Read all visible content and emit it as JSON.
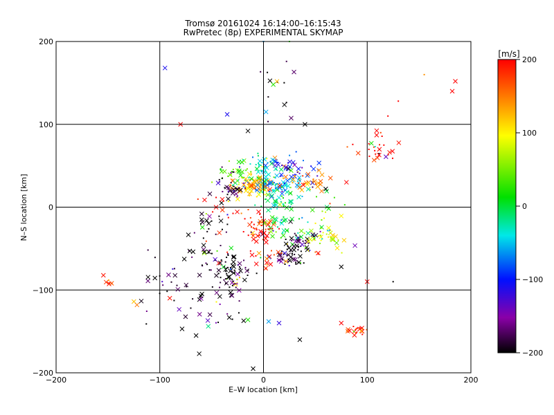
{
  "chart_data": {
    "type": "scatter",
    "title": "Tromsø 20161024 16:14:00–16:15:43",
    "subtitle": "RwPretec (8p) EXPERIMENTAL SKYMAP",
    "xlabel": "E–W location [km]",
    "ylabel": "N–S location [km]",
    "xlim": [
      -200,
      200
    ],
    "ylim": [
      -200,
      200
    ],
    "x_ticks": [
      -200,
      -100,
      0,
      100,
      200
    ],
    "y_ticks": [
      -200,
      -100,
      0,
      100,
      200
    ],
    "x_tick_labels": [
      "−200",
      "−100",
      "0",
      "100",
      "200"
    ],
    "y_tick_labels": [
      "−200",
      "−100",
      "0",
      "100",
      "200"
    ],
    "grid": true,
    "colorbar": {
      "label": "[m/s]",
      "range": [
        -200,
        200
      ],
      "ticks": [
        200,
        100,
        0,
        -100,
        -200
      ],
      "tick_labels": [
        "200",
        "100",
        "0",
        "−100",
        "−200"
      ],
      "colormap": [
        "#000000",
        "#8a00a8",
        "#0010ff",
        "#00e8e8",
        "#00e000",
        "#ffff00",
        "#ff8800",
        "#ff0000"
      ]
    },
    "clusters": [
      {
        "x": -10,
        "y": 25,
        "sx": 9,
        "sy": 6,
        "n": 90,
        "vel": 120
      },
      {
        "x": 15,
        "y": 25,
        "sx": 12,
        "sy": 6,
        "n": 70,
        "vel": -50
      },
      {
        "x": -25,
        "y": 40,
        "sx": 10,
        "sy": 8,
        "n": 35,
        "vel": 40
      },
      {
        "x": 25,
        "y": 45,
        "sx": 12,
        "sy": 8,
        "n": 45,
        "vel": -110
      },
      {
        "x": -30,
        "y": 25,
        "sx": 10,
        "sy": 10,
        "n": 35,
        "vel": -180
      },
      {
        "x": 45,
        "y": 30,
        "sx": 10,
        "sy": 6,
        "n": 30,
        "vel": 150
      },
      {
        "x": 10,
        "y": 5,
        "sx": 12,
        "sy": 8,
        "n": 40,
        "vel": -10
      },
      {
        "x": -5,
        "y": -25,
        "sx": 8,
        "sy": 8,
        "n": 50,
        "vel": 190
      },
      {
        "x": 20,
        "y": -25,
        "sx": 10,
        "sy": 10,
        "n": 35,
        "vel": -5
      },
      {
        "x": 35,
        "y": -45,
        "sx": 10,
        "sy": 8,
        "n": 40,
        "vel": -190
      },
      {
        "x": 60,
        "y": -35,
        "sx": 10,
        "sy": 8,
        "n": 40,
        "vel": 90
      },
      {
        "x": 25,
        "y": -60,
        "sx": 8,
        "sy": 6,
        "n": 35,
        "vel": -190
      },
      {
        "x": -30,
        "y": -80,
        "sx": 8,
        "sy": 12,
        "n": 60,
        "vel": -200
      },
      {
        "x": -55,
        "y": -60,
        "sx": 15,
        "sy": 12,
        "n": 40,
        "vel": -190
      },
      {
        "x": -55,
        "y": -120,
        "sx": 15,
        "sy": 20,
        "n": 30,
        "vel": -195
      },
      {
        "x": -50,
        "y": -25,
        "sx": 8,
        "sy": 8,
        "n": 20,
        "vel": -200
      },
      {
        "x": -90,
        "y": -90,
        "sx": 12,
        "sy": 15,
        "n": 20,
        "vel": -190
      },
      {
        "x": 110,
        "y": 70,
        "sx": 10,
        "sy": 10,
        "n": 30,
        "vel": 195
      },
      {
        "x": 90,
        "y": -148,
        "sx": 5,
        "sy": 3,
        "n": 20,
        "vel": 195
      },
      {
        "x": 15,
        "y": 140,
        "sx": 10,
        "sy": 20,
        "n": 15,
        "vel": -200
      },
      {
        "x": -150,
        "y": -90,
        "sx": 3,
        "sy": 3,
        "n": 8,
        "vel": 195
      },
      {
        "x": 0,
        "y": -60,
        "sx": 10,
        "sy": 10,
        "n": 20,
        "vel": 180
      },
      {
        "x": -40,
        "y": 0,
        "sx": 15,
        "sy": 10,
        "n": 15,
        "vel": 190
      },
      {
        "x": 0,
        "y": 50,
        "sx": 8,
        "sy": 6,
        "n": 40,
        "vel": -30
      },
      {
        "x": 60,
        "y": 0,
        "sx": 10,
        "sy": 10,
        "n": 15,
        "vel": 40
      }
    ],
    "outliers": [
      {
        "x": -95,
        "y": 168,
        "vel": -110,
        "m": "x"
      },
      {
        "x": 185,
        "y": 152,
        "vel": 200,
        "m": "x"
      },
      {
        "x": 182,
        "y": 140,
        "vel": 200,
        "m": "x"
      },
      {
        "x": 155,
        "y": 160,
        "vel": 140,
        "m": "."
      },
      {
        "x": 120,
        "y": 110,
        "vel": 200,
        "m": "."
      },
      {
        "x": 130,
        "y": 128,
        "vel": 200,
        "m": "."
      },
      {
        "x": 40,
        "y": 100,
        "vel": -200,
        "m": "x"
      },
      {
        "x": -15,
        "y": 92,
        "vel": -200,
        "m": "x"
      },
      {
        "x": -35,
        "y": 112,
        "vel": -110,
        "m": "x"
      },
      {
        "x": -80,
        "y": 100,
        "vel": 200,
        "m": "x"
      },
      {
        "x": -10,
        "y": -195,
        "vel": -200,
        "m": "x"
      },
      {
        "x": 35,
        "y": -160,
        "vel": -200,
        "m": "x"
      },
      {
        "x": 5,
        "y": -138,
        "vel": -60,
        "m": "x"
      },
      {
        "x": 15,
        "y": -140,
        "vel": -120,
        "m": "x"
      },
      {
        "x": -15,
        "y": -136,
        "vel": 20,
        "m": "x"
      },
      {
        "x": 75,
        "y": -140,
        "vel": 200,
        "m": "x"
      },
      {
        "x": 100,
        "y": -90,
        "vel": 200,
        "m": "x"
      },
      {
        "x": -125,
        "y": -114,
        "vel": 120,
        "m": "x"
      },
      {
        "x": -122,
        "y": -118,
        "vel": 150,
        "m": "x"
      },
      {
        "x": -113,
        "y": -141,
        "vel": -200,
        "m": "."
      },
      {
        "x": 125,
        "y": -90,
        "vel": -200,
        "m": "."
      },
      {
        "x": 60,
        "y": 22,
        "vel": -200,
        "m": "x"
      },
      {
        "x": 80,
        "y": 30,
        "vel": 200,
        "m": "x"
      },
      {
        "x": 0,
        "y": 200,
        "vel": -60,
        "m": "."
      },
      {
        "x": 25,
        "y": 200,
        "vel": 30,
        "m": "."
      },
      {
        "x": -62,
        "y": -177,
        "vel": -200,
        "m": "x"
      },
      {
        "x": -65,
        "y": -155,
        "vel": -200,
        "m": "x"
      },
      {
        "x": 75,
        "y": -72,
        "vel": -200,
        "m": "x"
      }
    ]
  }
}
